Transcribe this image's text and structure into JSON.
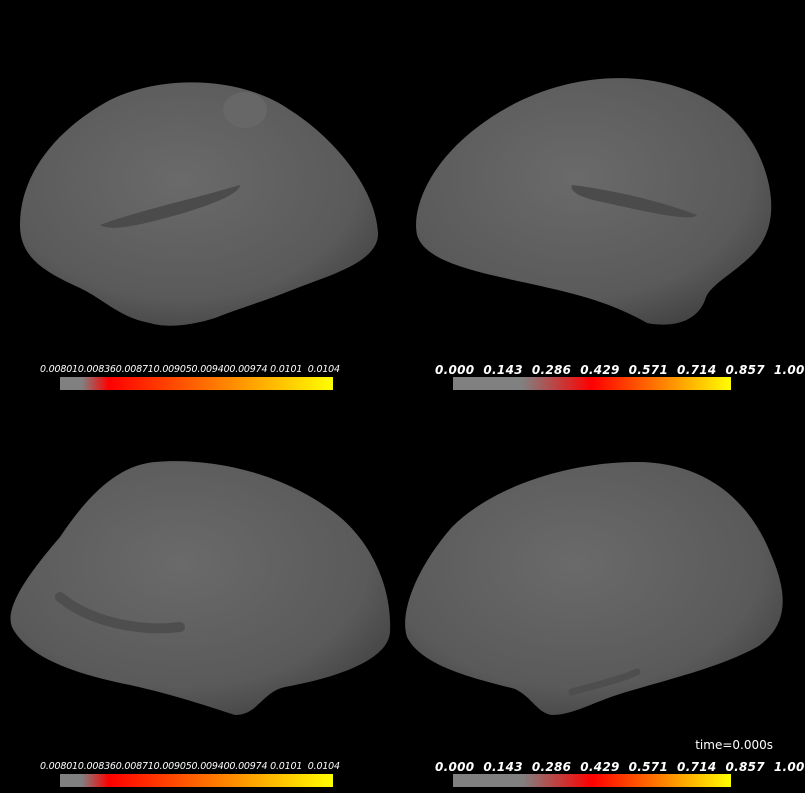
{
  "views": [
    {
      "id": "lh-lateral",
      "colorbar": {
        "ticks": "0.008010.008360.008710.009050.009400.00974 0.0101  0.0104",
        "colors": [
          "#808080",
          "#ff0000",
          "#ffff00"
        ],
        "gray_fraction": 0.08,
        "red_fraction": 0.18
      }
    },
    {
      "id": "rh-lateral",
      "colorbar": {
        "ticks": "0.000  0.143  0.286  0.429  0.571  0.714  0.857  1.00",
        "colors": [
          "#808080",
          "#ff0000",
          "#ffff00"
        ],
        "gray_fraction": 0.25,
        "red_fraction": 0.5
      }
    },
    {
      "id": "lh-medial",
      "colorbar": {
        "ticks": "0.008010.008360.008710.009050.009400.00974 0.0101  0.0104",
        "colors": [
          "#808080",
          "#ff0000",
          "#ffff00"
        ],
        "gray_fraction": 0.08,
        "red_fraction": 0.18
      }
    },
    {
      "id": "rh-medial",
      "colorbar": {
        "ticks": "0.000  0.143  0.286  0.429  0.571  0.714  0.857  1.00",
        "colors": [
          "#808080",
          "#ff0000",
          "#ffff00"
        ],
        "gray_fraction": 0.25,
        "red_fraction": 0.5
      }
    }
  ],
  "time_label": "time=0.000s",
  "background": "#000000",
  "surface_color": "#5a5a5a"
}
